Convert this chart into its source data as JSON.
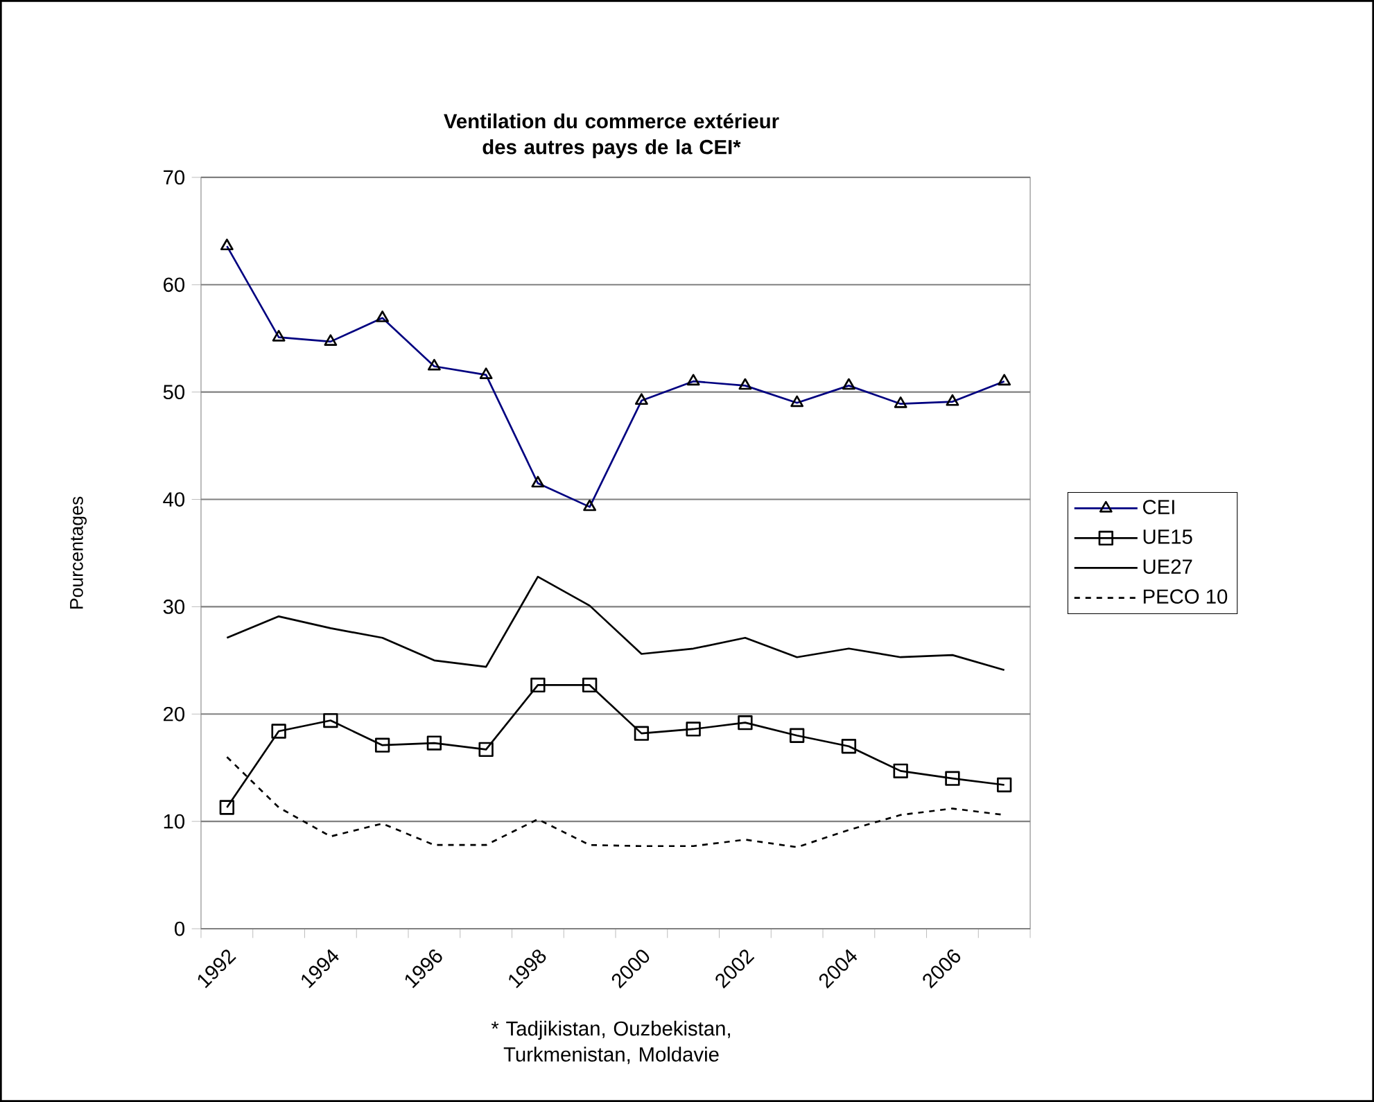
{
  "chart_data": {
    "type": "line",
    "title": "Ventilation du commerce extérieur des autres pays de la CEI*",
    "ylabel": "Pourcentages",
    "categories": [
      "1992",
      null,
      "1994",
      null,
      "1996",
      null,
      "1998",
      null,
      "2000",
      null,
      "2002",
      null,
      "2004",
      null,
      "2006",
      null
    ],
    "series": [
      {
        "name": "CEI",
        "color": "#000080",
        "marker": "triangle",
        "line_style": "solid",
        "values": [
          63.6,
          55.1,
          54.7,
          56.9,
          52.4,
          51.6,
          41.5,
          39.3,
          49.2,
          51.0,
          50.6,
          49.0,
          50.6,
          48.9,
          49.1,
          51.0
        ]
      },
      {
        "name": "UE15",
        "color": "#000000",
        "marker": "square",
        "line_style": "solid",
        "values": [
          11.3,
          18.4,
          19.4,
          17.1,
          17.3,
          16.7,
          22.7,
          22.7,
          18.2,
          18.6,
          19.2,
          18.0,
          17.0,
          14.7,
          14.0,
          13.4
        ]
      },
      {
        "name": "UE27",
        "color": "#000000",
        "marker": "none",
        "line_style": "solid",
        "values": [
          27.1,
          29.1,
          28.0,
          27.1,
          25.0,
          24.4,
          32.8,
          30.1,
          25.6,
          26.1,
          27.1,
          25.3,
          26.1,
          25.3,
          25.5,
          24.1
        ]
      },
      {
        "name": "PECO 10",
        "color": "#000000",
        "marker": "none",
        "line_style": "dashed",
        "values": [
          16.0,
          11.3,
          8.6,
          9.8,
          7.8,
          7.8,
          10.2,
          7.8,
          7.7,
          7.7,
          8.3,
          7.6,
          9.2,
          10.6,
          11.2,
          10.6
        ]
      }
    ],
    "ylim": [
      0,
      70
    ],
    "yticks": [
      0,
      10,
      20,
      30,
      40,
      50,
      60,
      70
    ],
    "grid": "y",
    "legend": "right",
    "annotations": [
      "* Tadjikistan, Ouzbekistan, Turkmenistan, Moldavie"
    ]
  }
}
